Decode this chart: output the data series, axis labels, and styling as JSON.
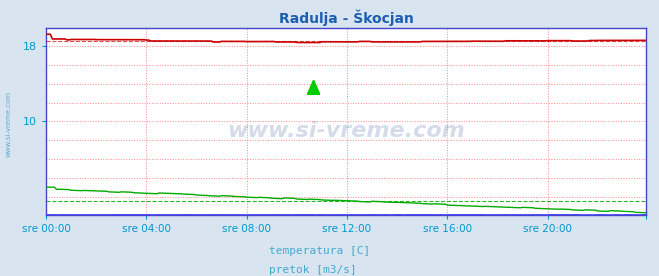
{
  "title": "Radulja - Škocjan",
  "title_color": "#1a5fb4",
  "bg_color": "#d8e4f0",
  "plot_bg_color": "#ffffff",
  "grid_color": "#ff8888",
  "ylim": [
    0,
    20
  ],
  "xlim": [
    0,
    287
  ],
  "yticks": [
    10,
    18
  ],
  "xtick_positions": [
    0,
    48,
    96,
    144,
    192,
    240,
    287
  ],
  "xtick_labels": [
    "sre 00:00",
    "sre 04:00",
    "sre 08:00",
    "sre 12:00",
    "sre 16:00",
    "sre 20:00",
    ""
  ],
  "tick_color": "#0099cc",
  "axis_color": "#4444cc",
  "temp_color": "#cc0000",
  "flow_color": "#00aa00",
  "height_color": "#4444ff",
  "watermark": "www.si-vreme.com",
  "watermark_color": "#1a3a8a",
  "side_text": "www.si-vreme.com",
  "side_text_color": "#4499cc",
  "legend_temp_label": "temperatura [C]",
  "legend_flow_label": "pretok [m3/s]",
  "legend_text_color": "#44aacc",
  "n_points": 288,
  "temp_base": 18.55,
  "flow_start": 2.8,
  "flow_end": 0.3
}
